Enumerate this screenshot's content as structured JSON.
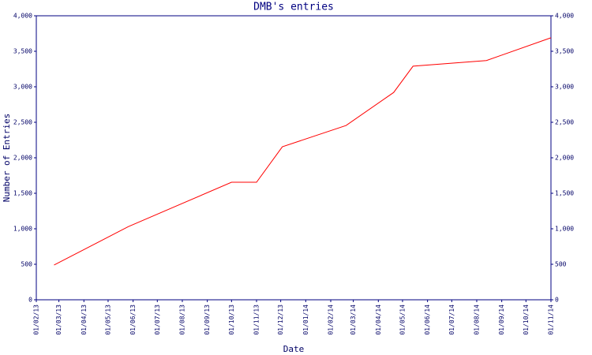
{
  "chart_data": {
    "type": "line",
    "title": "DMB's entries",
    "xlabel": "Date",
    "ylabel": "Number of Entries",
    "x": [
      "2013-02-23",
      "2013-05-26",
      "2013-10-01",
      "2013-11-01",
      "2013-12-03",
      "2014-02-20",
      "2014-04-20",
      "2014-05-14",
      "2014-08-13",
      "2014-11-01"
    ],
    "series": [
      {
        "name": "entries",
        "color": "#ff0000",
        "values": [
          490,
          1030,
          1655,
          1655,
          2155,
          2455,
          2920,
          3290,
          3370,
          3690
        ]
      }
    ],
    "xlim": [
      "2013-02-01",
      "2014-11-01"
    ],
    "xticks": [
      {
        "value": "2013-02-01",
        "label": "01/02/13"
      },
      {
        "value": "2013-03-01",
        "label": "01/03/13"
      },
      {
        "value": "2013-04-01",
        "label": "01/04/13"
      },
      {
        "value": "2013-05-01",
        "label": "01/05/13"
      },
      {
        "value": "2013-06-01",
        "label": "01/06/13"
      },
      {
        "value": "2013-07-01",
        "label": "01/07/13"
      },
      {
        "value": "2013-08-01",
        "label": "01/08/13"
      },
      {
        "value": "2013-09-01",
        "label": "01/09/13"
      },
      {
        "value": "2013-10-01",
        "label": "01/10/13"
      },
      {
        "value": "2013-11-01",
        "label": "01/11/13"
      },
      {
        "value": "2013-12-01",
        "label": "01/12/13"
      },
      {
        "value": "2014-01-01",
        "label": "01/01/14"
      },
      {
        "value": "2014-02-01",
        "label": "01/02/14"
      },
      {
        "value": "2014-03-01",
        "label": "01/03/14"
      },
      {
        "value": "2014-04-01",
        "label": "01/04/14"
      },
      {
        "value": "2014-05-01",
        "label": "01/05/14"
      },
      {
        "value": "2014-06-01",
        "label": "01/06/14"
      },
      {
        "value": "2014-07-01",
        "label": "01/07/14"
      },
      {
        "value": "2014-08-01",
        "label": "01/08/14"
      },
      {
        "value": "2014-09-01",
        "label": "01/09/14"
      },
      {
        "value": "2014-10-01",
        "label": "01/10/14"
      },
      {
        "value": "2014-11-01",
        "label": "01/11/14"
      }
    ],
    "ylim": [
      0,
      4000
    ],
    "yticks": [
      0,
      500,
      {
        "value": 1000,
        "label": "1,000"
      },
      {
        "value": 1500,
        "label": "1,500"
      },
      {
        "value": 2000,
        "label": "2,000"
      },
      {
        "value": 2500,
        "label": "2,500"
      },
      {
        "value": 3000,
        "label": "3,000"
      },
      {
        "value": 3500,
        "label": "3,500"
      },
      {
        "value": 4000,
        "label": "4,000"
      }
    ],
    "y2lim": [
      0,
      4000
    ],
    "y2ticks": [
      0,
      500,
      {
        "value": 1000,
        "label": "1,000"
      },
      {
        "value": 1500,
        "label": "1,500"
      },
      {
        "value": 2000,
        "label": "2,000"
      },
      {
        "value": 2500,
        "label": "2,500"
      },
      {
        "value": 3000,
        "label": "3,000"
      },
      {
        "value": 3500,
        "label": "3,500"
      },
      {
        "value": 4000,
        "label": "4,000"
      }
    ]
  }
}
